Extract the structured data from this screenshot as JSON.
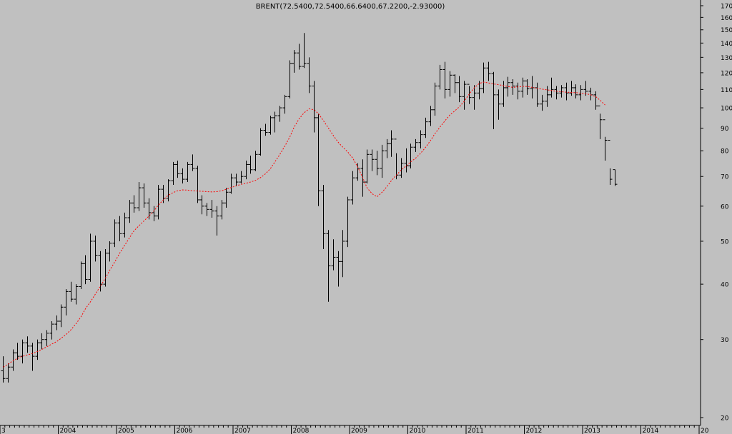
{
  "chart_data": {
    "type": "ohlc",
    "title": "BRENT(72.5400,72.5400,66.6400,67.2200,-2.93000)",
    "scale": "log",
    "ylim": [
      20,
      170
    ],
    "y_ticks": [
      20,
      30,
      40,
      50,
      60,
      70,
      80,
      90,
      100,
      110,
      120,
      130,
      140,
      150,
      160,
      170
    ],
    "x_tick_labels": [
      "3",
      "2004",
      "2005",
      "2006",
      "2007",
      "2008",
      "2009",
      "2010",
      "2011",
      "2012",
      "2013",
      "2014",
      "20"
    ],
    "x_tick_dates": [
      2003.0,
      2004.0,
      2005.0,
      2006.0,
      2007.0,
      2008.0,
      2009.0,
      2010.0,
      2011.0,
      2012.0,
      2013.0,
      2014.0,
      2015.0
    ],
    "colors": {
      "background": "#c0c0c0",
      "bars": "#000000",
      "moving_average": "#ff0000"
    },
    "series": [
      {
        "kind": "ohlc-bars",
        "x_start": 2003.0,
        "x_step": 0.08333,
        "data": [
          [
            25.5,
            27.5,
            24.0,
            24.5
          ],
          [
            24.5,
            26.5,
            24.0,
            26.0
          ],
          [
            26.0,
            28.5,
            25.5,
            28.0
          ],
          [
            28.0,
            29.5,
            27.0,
            27.5
          ],
          [
            27.5,
            30.0,
            26.5,
            29.5
          ],
          [
            29.5,
            30.5,
            28.0,
            29.0
          ],
          [
            29.0,
            29.5,
            25.5,
            27.5
          ],
          [
            27.5,
            30.0,
            27.0,
            29.5
          ],
          [
            29.5,
            31.0,
            28.5,
            30.0
          ],
          [
            30.0,
            31.5,
            29.0,
            31.0
          ],
          [
            31.0,
            33.0,
            30.0,
            32.5
          ],
          [
            32.5,
            34.0,
            31.5,
            33.0
          ],
          [
            33.0,
            36.0,
            32.0,
            35.5
          ],
          [
            35.5,
            39.0,
            34.0,
            38.5
          ],
          [
            38.5,
            40.5,
            36.5,
            37.0
          ],
          [
            37.0,
            40.0,
            36.0,
            39.5
          ],
          [
            39.5,
            45.0,
            39.0,
            44.5
          ],
          [
            44.5,
            46.5,
            40.0,
            41.0
          ],
          [
            41.0,
            52.0,
            40.5,
            50.0
          ],
          [
            50.0,
            51.5,
            45.0,
            46.5
          ],
          [
            46.5,
            47.5,
            38.5,
            40.0
          ],
          [
            40.0,
            48.0,
            39.5,
            47.0
          ],
          [
            47.0,
            50.0,
            45.0,
            49.5
          ],
          [
            49.5,
            56.0,
            48.5,
            55.0
          ],
          [
            55.0,
            57.0,
            50.0,
            52.0
          ],
          [
            52.0,
            58.0,
            51.0,
            56.5
          ],
          [
            56.5,
            62.0,
            55.0,
            61.0
          ],
          [
            61.0,
            63.5,
            58.0,
            59.5
          ],
          [
            59.5,
            68.0,
            58.5,
            66.0
          ],
          [
            66.0,
            67.5,
            59.5,
            61.0
          ],
          [
            61.0,
            62.5,
            56.0,
            58.0
          ],
          [
            58.0,
            60.0,
            55.5,
            57.0
          ],
          [
            57.0,
            67.0,
            56.0,
            65.5
          ],
          [
            65.5,
            67.0,
            61.0,
            62.5
          ],
          [
            62.5,
            69.0,
            61.5,
            68.5
          ],
          [
            68.5,
            75.5,
            67.0,
            74.5
          ],
          [
            74.5,
            76.0,
            69.5,
            71.0
          ],
          [
            71.0,
            73.0,
            67.5,
            69.0
          ],
          [
            69.0,
            75.5,
            68.0,
            74.5
          ],
          [
            74.5,
            78.5,
            72.0,
            73.0
          ],
          [
            73.0,
            74.0,
            61.0,
            62.0
          ],
          [
            62.0,
            63.5,
            57.5,
            60.0
          ],
          [
            60.0,
            61.0,
            57.0,
            59.0
          ],
          [
            59.0,
            62.0,
            56.5,
            58.5
          ],
          [
            58.5,
            60.0,
            51.5,
            57.0
          ],
          [
            57.0,
            62.0,
            56.0,
            61.0
          ],
          [
            61.0,
            66.0,
            59.5,
            64.5
          ],
          [
            64.5,
            71.0,
            64.0,
            69.5
          ],
          [
            69.5,
            71.0,
            66.5,
            68.0
          ],
          [
            68.0,
            72.0,
            67.5,
            70.0
          ],
          [
            70.0,
            76.0,
            69.0,
            74.5
          ],
          [
            74.5,
            78.0,
            71.0,
            72.5
          ],
          [
            72.5,
            80.0,
            72.0,
            78.5
          ],
          [
            78.5,
            90.0,
            78.0,
            89.0
          ],
          [
            89.0,
            92.0,
            86.5,
            88.0
          ],
          [
            88.0,
            96.0,
            87.0,
            95.0
          ],
          [
            95.0,
            98.0,
            88.0,
            96.0
          ],
          [
            96.0,
            101.0,
            93.0,
            100.0
          ],
          [
            100.0,
            107.0,
            97.0,
            106.0
          ],
          [
            106.0,
            128.0,
            105.0,
            126.0
          ],
          [
            126.0,
            135.0,
            120.0,
            133.0
          ],
          [
            133.0,
            139.5,
            122.0,
            124.0
          ],
          [
            124.0,
            147.5,
            123.0,
            126.0
          ],
          [
            126.0,
            130.0,
            108.0,
            112.0
          ],
          [
            112.0,
            115.0,
            88.0,
            95.0
          ],
          [
            95.0,
            97.0,
            60.0,
            65.0
          ],
          [
            65.0,
            67.0,
            48.0,
            52.0
          ],
          [
            52.0,
            53.0,
            36.5,
            44.0
          ],
          [
            44.0,
            50.5,
            43.0,
            46.0
          ],
          [
            46.0,
            47.5,
            39.5,
            45.0
          ],
          [
            45.0,
            53.0,
            41.5,
            50.0
          ],
          [
            50.0,
            63.0,
            48.5,
            62.0
          ],
          [
            62.0,
            72.0,
            60.5,
            69.5
          ],
          [
            69.5,
            75.0,
            68.5,
            73.0
          ],
          [
            73.0,
            76.5,
            63.0,
            68.0
          ],
          [
            68.0,
            80.5,
            67.5,
            78.5
          ],
          [
            78.5,
            80.5,
            72.0,
            76.5
          ],
          [
            76.5,
            80.0,
            70.5,
            73.0
          ],
          [
            73.0,
            82.5,
            69.5,
            80.0
          ],
          [
            80.0,
            85.0,
            77.0,
            83.0
          ],
          [
            83.0,
            89.0,
            77.5,
            85.0
          ],
          [
            85.0,
            79.0,
            69.0,
            70.5
          ],
          [
            70.5,
            77.0,
            69.5,
            75.0
          ],
          [
            75.0,
            81.0,
            71.5,
            74.0
          ],
          [
            74.0,
            83.0,
            73.0,
            81.5
          ],
          [
            81.5,
            85.0,
            79.5,
            83.5
          ],
          [
            83.5,
            89.0,
            81.0,
            87.0
          ],
          [
            87.0,
            95.0,
            85.5,
            93.0
          ],
          [
            93.0,
            101.0,
            91.0,
            99.0
          ],
          [
            99.0,
            114.0,
            96.0,
            112.0
          ],
          [
            112.0,
            125.0,
            110.0,
            122.0
          ],
          [
            122.0,
            127.0,
            105.0,
            110.0
          ],
          [
            110.0,
            121.0,
            106.0,
            118.5
          ],
          [
            118.5,
            119.0,
            108.0,
            114.0
          ],
          [
            114.0,
            118.0,
            103.0,
            106.0
          ],
          [
            106.0,
            115.0,
            99.0,
            113.0
          ],
          [
            113.0,
            112.0,
            102.0,
            105.5
          ],
          [
            105.5,
            112.5,
            99.0,
            108.0
          ],
          [
            108.0,
            115.0,
            104.5,
            110.5
          ],
          [
            110.5,
            126.5,
            108.0,
            123.0
          ],
          [
            123.0,
            127.0,
            115.0,
            119.5
          ],
          [
            119.5,
            120.5,
            89.5,
            107.0
          ],
          [
            107.0,
            110.0,
            94.0,
            102.0
          ],
          [
            102.0,
            115.0,
            100.5,
            111.0
          ],
          [
            111.0,
            117.5,
            106.0,
            114.0
          ],
          [
            114.0,
            116.0,
            107.0,
            112.0
          ],
          [
            112.0,
            114.0,
            104.5,
            109.0
          ],
          [
            109.0,
            117.0,
            105.5,
            115.0
          ],
          [
            115.0,
            116.0,
            107.0,
            110.5
          ],
          [
            110.5,
            118.0,
            105.0,
            111.0
          ],
          [
            111.0,
            114.0,
            100.5,
            102.0
          ],
          [
            102.0,
            107.0,
            98.5,
            103.5
          ],
          [
            103.5,
            112.0,
            100.5,
            107.0
          ],
          [
            107.0,
            117.0,
            105.5,
            110.0
          ],
          [
            110.0,
            112.0,
            104.5,
            108.0
          ],
          [
            108.0,
            112.5,
            105.5,
            111.0
          ],
          [
            111.0,
            114.0,
            104.0,
            108.0
          ],
          [
            108.0,
            115.0,
            106.5,
            111.0
          ],
          [
            111.0,
            113.0,
            105.0,
            107.0
          ],
          [
            107.0,
            112.5,
            104.0,
            110.0
          ],
          [
            110.0,
            115.0,
            106.5,
            109.0
          ],
          [
            109.0,
            111.0,
            104.0,
            107.0
          ],
          [
            107.0,
            109.0,
            99.0,
            101.0
          ],
          [
            101.0,
            97.0,
            85.0,
            94.0
          ],
          [
            94.0,
            86.0,
            76.0,
            84.5
          ],
          [
            84.5,
            73.0,
            67.0,
            69.0
          ],
          [
            72.54,
            72.54,
            66.64,
            67.22
          ]
        ]
      },
      {
        "kind": "moving-average",
        "x_start": 2003.0,
        "x_step": 0.08333,
        "values": [
          26.0,
          26.4,
          26.9,
          27.2,
          27.5,
          27.7,
          27.9,
          28.2,
          28.5,
          28.9,
          29.3,
          29.7,
          30.2,
          30.8,
          31.6,
          32.6,
          33.8,
          35.2,
          36.5,
          38.0,
          39.6,
          41.3,
          43.0,
          44.9,
          47.0,
          49.0,
          51.0,
          52.8,
          54.2,
          55.6,
          57.0,
          58.6,
          60.3,
          62.0,
          63.5,
          64.4,
          65.0,
          65.3,
          65.2,
          65.0,
          64.9,
          64.8,
          64.7,
          64.6,
          64.7,
          65.0,
          65.5,
          66.1,
          66.7,
          67.2,
          67.6,
          68.0,
          68.6,
          69.6,
          71.0,
          73.0,
          75.5,
          78.5,
          82.0,
          86.0,
          90.5,
          94.5,
          97.5,
          99.5,
          99.0,
          97.0,
          93.5,
          90.0,
          86.5,
          83.5,
          81.5,
          79.5,
          77.0,
          73.5,
          69.5,
          66.0,
          64.0,
          63.0,
          64.5,
          66.5,
          68.5,
          70.5,
          72.5,
          74.0,
          75.5,
          77.0,
          79.0,
          81.5,
          84.5,
          87.5,
          90.5,
          93.5,
          96.5,
          98.5,
          100.5,
          103.5,
          107.5,
          111.0,
          113.5,
          114.3,
          113.8,
          113.2,
          112.8,
          112.2,
          111.7,
          111.2,
          111.5,
          111.8,
          111.7,
          111.2,
          110.7,
          110.2,
          109.8,
          109.4,
          109.0,
          108.7,
          108.5,
          108.3,
          108.2,
          107.9,
          107.6,
          107.0,
          106.0,
          104.0,
          101.5
        ]
      }
    ]
  }
}
